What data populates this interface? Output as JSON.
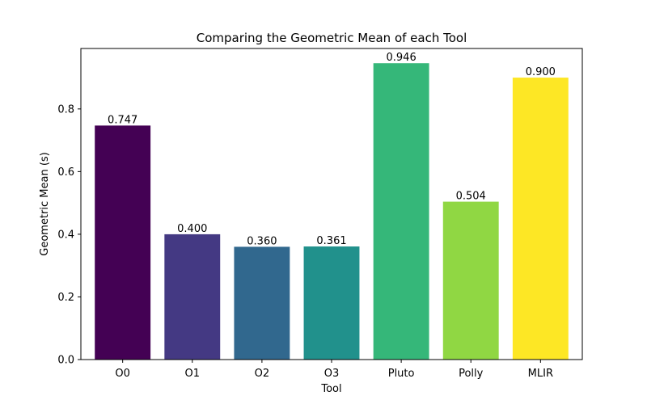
{
  "chart_data": {
    "type": "bar",
    "title": "Comparing the Geometric Mean of each Tool",
    "xlabel": "Tool",
    "ylabel": "Geometric Mean (s)",
    "categories": [
      "O0",
      "O1",
      "O2",
      "O3",
      "Pluto",
      "Polly",
      "MLIR"
    ],
    "values": [
      0.747,
      0.4,
      0.36,
      0.361,
      0.946,
      0.504,
      0.9
    ],
    "value_labels": [
      "0.747",
      "0.400",
      "0.360",
      "0.361",
      "0.946",
      "0.504",
      "0.900"
    ],
    "colors": [
      "#440154",
      "#443983",
      "#31688e",
      "#21918c",
      "#35b779",
      "#90d743",
      "#fde725"
    ],
    "ylim": [
      0,
      0.993
    ],
    "yticks": [
      0.0,
      0.2,
      0.4,
      0.6,
      0.8
    ],
    "ytick_labels": [
      "0.0",
      "0.2",
      "0.4",
      "0.6",
      "0.8"
    ],
    "grid": false,
    "legend": false
  }
}
